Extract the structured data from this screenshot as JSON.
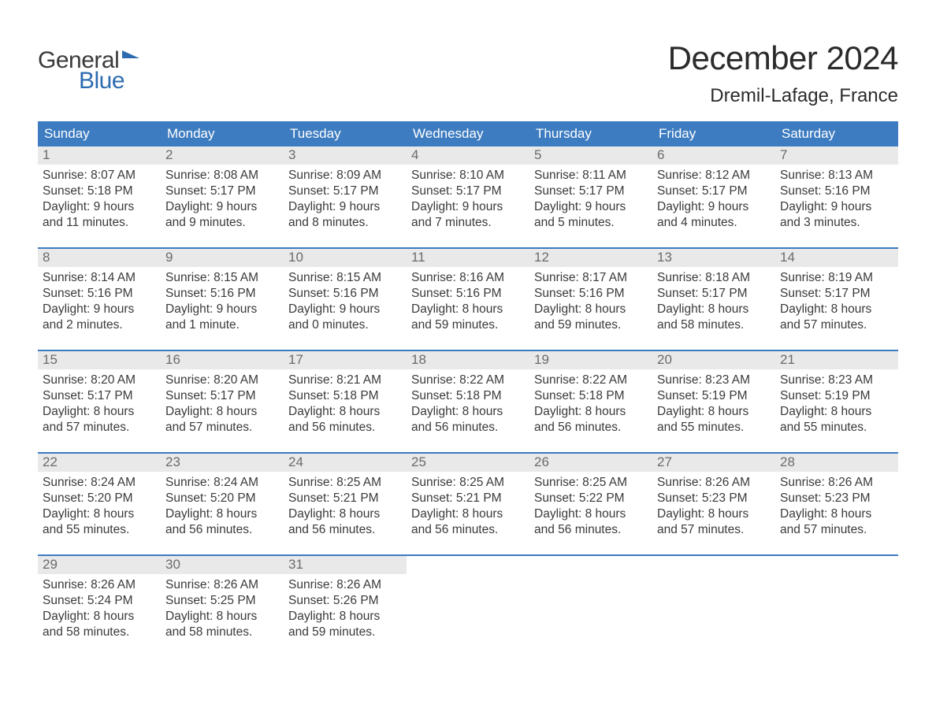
{
  "brand": {
    "part1": "General",
    "part2": "Blue"
  },
  "title": "December 2024",
  "location": "Dremil-Lafage, France",
  "colors": {
    "header_bg": "#3d7cc0",
    "header_text": "#ffffff",
    "daynum_bg": "#e9e9e9",
    "daynum_text": "#6b6b6b",
    "body_text": "#3a3a3a",
    "accent": "#2d6bb1",
    "week_border": "#3d7cc0",
    "background": "#ffffff"
  },
  "typography": {
    "title_fontsize": 42,
    "location_fontsize": 24,
    "weekday_fontsize": 17,
    "daynum_fontsize": 17,
    "body_fontsize": 15.5
  },
  "weekdays": [
    "Sunday",
    "Monday",
    "Tuesday",
    "Wednesday",
    "Thursday",
    "Friday",
    "Saturday"
  ],
  "weeks": [
    [
      {
        "n": "1",
        "sunrise": "Sunrise: 8:07 AM",
        "sunset": "Sunset: 5:18 PM",
        "d1": "Daylight: 9 hours",
        "d2": "and 11 minutes."
      },
      {
        "n": "2",
        "sunrise": "Sunrise: 8:08 AM",
        "sunset": "Sunset: 5:17 PM",
        "d1": "Daylight: 9 hours",
        "d2": "and 9 minutes."
      },
      {
        "n": "3",
        "sunrise": "Sunrise: 8:09 AM",
        "sunset": "Sunset: 5:17 PM",
        "d1": "Daylight: 9 hours",
        "d2": "and 8 minutes."
      },
      {
        "n": "4",
        "sunrise": "Sunrise: 8:10 AM",
        "sunset": "Sunset: 5:17 PM",
        "d1": "Daylight: 9 hours",
        "d2": "and 7 minutes."
      },
      {
        "n": "5",
        "sunrise": "Sunrise: 8:11 AM",
        "sunset": "Sunset: 5:17 PM",
        "d1": "Daylight: 9 hours",
        "d2": "and 5 minutes."
      },
      {
        "n": "6",
        "sunrise": "Sunrise: 8:12 AM",
        "sunset": "Sunset: 5:17 PM",
        "d1": "Daylight: 9 hours",
        "d2": "and 4 minutes."
      },
      {
        "n": "7",
        "sunrise": "Sunrise: 8:13 AM",
        "sunset": "Sunset: 5:16 PM",
        "d1": "Daylight: 9 hours",
        "d2": "and 3 minutes."
      }
    ],
    [
      {
        "n": "8",
        "sunrise": "Sunrise: 8:14 AM",
        "sunset": "Sunset: 5:16 PM",
        "d1": "Daylight: 9 hours",
        "d2": "and 2 minutes."
      },
      {
        "n": "9",
        "sunrise": "Sunrise: 8:15 AM",
        "sunset": "Sunset: 5:16 PM",
        "d1": "Daylight: 9 hours",
        "d2": "and 1 minute."
      },
      {
        "n": "10",
        "sunrise": "Sunrise: 8:15 AM",
        "sunset": "Sunset: 5:16 PM",
        "d1": "Daylight: 9 hours",
        "d2": "and 0 minutes."
      },
      {
        "n": "11",
        "sunrise": "Sunrise: 8:16 AM",
        "sunset": "Sunset: 5:16 PM",
        "d1": "Daylight: 8 hours",
        "d2": "and 59 minutes."
      },
      {
        "n": "12",
        "sunrise": "Sunrise: 8:17 AM",
        "sunset": "Sunset: 5:16 PM",
        "d1": "Daylight: 8 hours",
        "d2": "and 59 minutes."
      },
      {
        "n": "13",
        "sunrise": "Sunrise: 8:18 AM",
        "sunset": "Sunset: 5:17 PM",
        "d1": "Daylight: 8 hours",
        "d2": "and 58 minutes."
      },
      {
        "n": "14",
        "sunrise": "Sunrise: 8:19 AM",
        "sunset": "Sunset: 5:17 PM",
        "d1": "Daylight: 8 hours",
        "d2": "and 57 minutes."
      }
    ],
    [
      {
        "n": "15",
        "sunrise": "Sunrise: 8:20 AM",
        "sunset": "Sunset: 5:17 PM",
        "d1": "Daylight: 8 hours",
        "d2": "and 57 minutes."
      },
      {
        "n": "16",
        "sunrise": "Sunrise: 8:20 AM",
        "sunset": "Sunset: 5:17 PM",
        "d1": "Daylight: 8 hours",
        "d2": "and 57 minutes."
      },
      {
        "n": "17",
        "sunrise": "Sunrise: 8:21 AM",
        "sunset": "Sunset: 5:18 PM",
        "d1": "Daylight: 8 hours",
        "d2": "and 56 minutes."
      },
      {
        "n": "18",
        "sunrise": "Sunrise: 8:22 AM",
        "sunset": "Sunset: 5:18 PM",
        "d1": "Daylight: 8 hours",
        "d2": "and 56 minutes."
      },
      {
        "n": "19",
        "sunrise": "Sunrise: 8:22 AM",
        "sunset": "Sunset: 5:18 PM",
        "d1": "Daylight: 8 hours",
        "d2": "and 56 minutes."
      },
      {
        "n": "20",
        "sunrise": "Sunrise: 8:23 AM",
        "sunset": "Sunset: 5:19 PM",
        "d1": "Daylight: 8 hours",
        "d2": "and 55 minutes."
      },
      {
        "n": "21",
        "sunrise": "Sunrise: 8:23 AM",
        "sunset": "Sunset: 5:19 PM",
        "d1": "Daylight: 8 hours",
        "d2": "and 55 minutes."
      }
    ],
    [
      {
        "n": "22",
        "sunrise": "Sunrise: 8:24 AM",
        "sunset": "Sunset: 5:20 PM",
        "d1": "Daylight: 8 hours",
        "d2": "and 55 minutes."
      },
      {
        "n": "23",
        "sunrise": "Sunrise: 8:24 AM",
        "sunset": "Sunset: 5:20 PM",
        "d1": "Daylight: 8 hours",
        "d2": "and 56 minutes."
      },
      {
        "n": "24",
        "sunrise": "Sunrise: 8:25 AM",
        "sunset": "Sunset: 5:21 PM",
        "d1": "Daylight: 8 hours",
        "d2": "and 56 minutes."
      },
      {
        "n": "25",
        "sunrise": "Sunrise: 8:25 AM",
        "sunset": "Sunset: 5:21 PM",
        "d1": "Daylight: 8 hours",
        "d2": "and 56 minutes."
      },
      {
        "n": "26",
        "sunrise": "Sunrise: 8:25 AM",
        "sunset": "Sunset: 5:22 PM",
        "d1": "Daylight: 8 hours",
        "d2": "and 56 minutes."
      },
      {
        "n": "27",
        "sunrise": "Sunrise: 8:26 AM",
        "sunset": "Sunset: 5:23 PM",
        "d1": "Daylight: 8 hours",
        "d2": "and 57 minutes."
      },
      {
        "n": "28",
        "sunrise": "Sunrise: 8:26 AM",
        "sunset": "Sunset: 5:23 PM",
        "d1": "Daylight: 8 hours",
        "d2": "and 57 minutes."
      }
    ],
    [
      {
        "n": "29",
        "sunrise": "Sunrise: 8:26 AM",
        "sunset": "Sunset: 5:24 PM",
        "d1": "Daylight: 8 hours",
        "d2": "and 58 minutes."
      },
      {
        "n": "30",
        "sunrise": "Sunrise: 8:26 AM",
        "sunset": "Sunset: 5:25 PM",
        "d1": "Daylight: 8 hours",
        "d2": "and 58 minutes."
      },
      {
        "n": "31",
        "sunrise": "Sunrise: 8:26 AM",
        "sunset": "Sunset: 5:26 PM",
        "d1": "Daylight: 8 hours",
        "d2": "and 59 minutes."
      },
      null,
      null,
      null,
      null
    ]
  ]
}
